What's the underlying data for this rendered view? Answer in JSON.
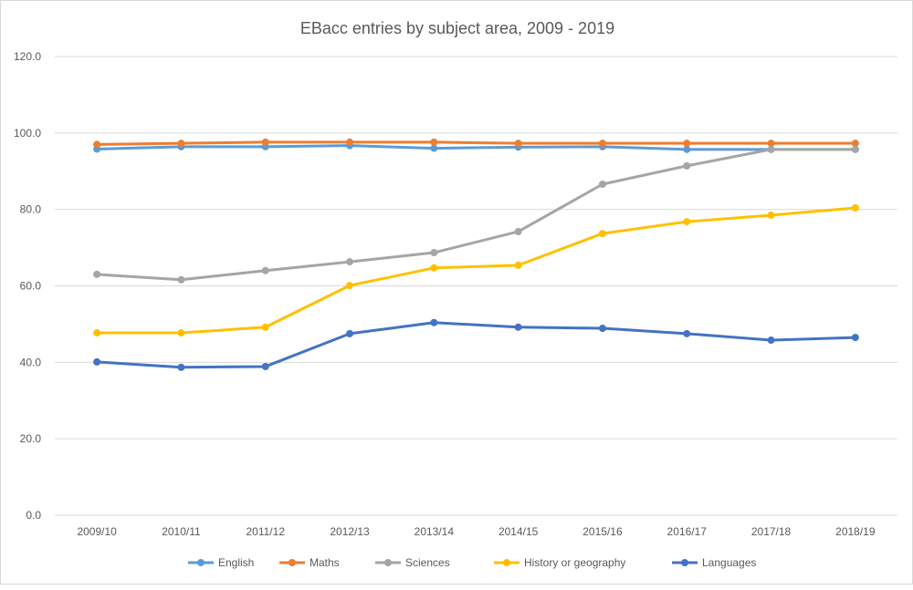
{
  "chart_data": {
    "type": "line",
    "title": "EBacc entries by subject area, 2009 - 2019",
    "xlabel": "",
    "ylabel": "",
    "ylim": [
      0,
      120
    ],
    "yticks": [
      "0.0",
      "20.0",
      "40.0",
      "60.0",
      "80.0",
      "100.0",
      "120.0"
    ],
    "grid": true,
    "legend_position": "bottom",
    "categories": [
      "2009/10",
      "2010/11",
      "2011/12",
      "2012/13",
      "2013/14",
      "2014/15",
      "2015/16",
      "2016/17",
      "2017/18",
      "2018/19"
    ],
    "series": [
      {
        "name": "English",
        "color": "#5b9bd5",
        "values": [
          95.8,
          96.4,
          96.4,
          96.7,
          96.0,
          96.3,
          96.4,
          95.7,
          95.7,
          95.7
        ]
      },
      {
        "name": "Maths",
        "color": "#ed7d31",
        "values": [
          97.0,
          97.3,
          97.6,
          97.6,
          97.6,
          97.3,
          97.3,
          97.3,
          97.3,
          97.3
        ]
      },
      {
        "name": "Sciences",
        "color": "#a5a5a5",
        "values": [
          63.0,
          61.6,
          64.0,
          66.3,
          68.7,
          74.2,
          86.6,
          91.4,
          95.7,
          95.7
        ]
      },
      {
        "name": "History or geography",
        "color": "#ffc000",
        "values": [
          47.7,
          47.7,
          49.2,
          60.1,
          64.7,
          65.4,
          73.7,
          76.8,
          78.5,
          80.4
        ]
      },
      {
        "name": "Languages",
        "color": "#4472c4",
        "values": [
          40.1,
          38.7,
          38.9,
          47.5,
          50.4,
          49.2,
          48.9,
          47.5,
          45.8,
          46.5
        ]
      }
    ]
  }
}
